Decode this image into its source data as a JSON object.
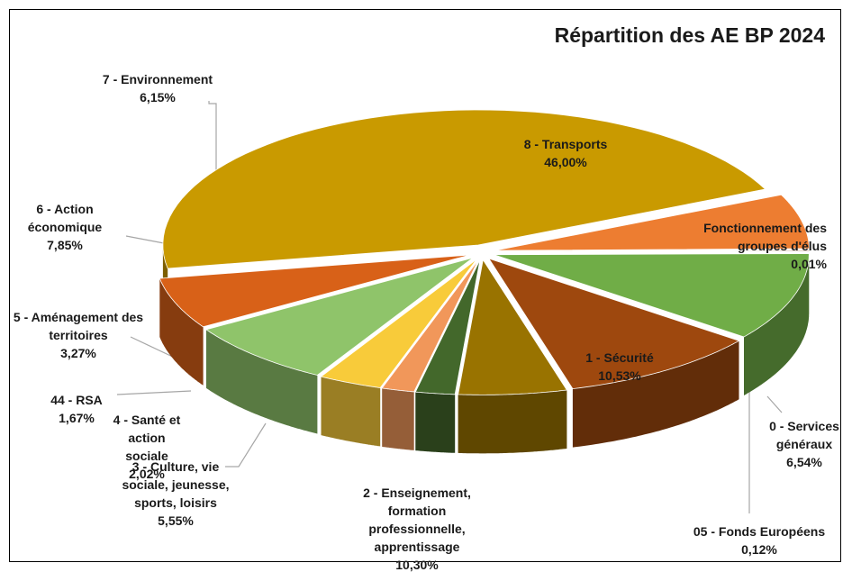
{
  "chart_data": {
    "type": "pie",
    "title": "Répartition des AE BP 2024",
    "categories": [
      "8 - Transports",
      "Fonctionnement des groupes d'élus",
      "0 - Services généraux",
      "05 - Fonds Européens",
      "1 - Sécurité",
      "2 - Enseignement, formation professionnelle, apprentissage",
      "3 - Culture, vie sociale, jeunesse, sports, loisirs",
      "4 - Santé et action sociale",
      "44 - RSA",
      "5 - Aménagement des territoires",
      "6 - Action économique",
      "7 - Environnement"
    ],
    "values": [
      46.0,
      0.01,
      6.54,
      0.12,
      10.53,
      10.3,
      5.55,
      2.02,
      1.67,
      3.27,
      7.85,
      6.15
    ],
    "value_labels": [
      "46,00%",
      "0,01%",
      "6,54%",
      "0,12%",
      "10,53%",
      "10,30%",
      "5,55%",
      "2,02%",
      "1,67%",
      "3,27%",
      "7,85%",
      "6,15%"
    ],
    "colors": [
      "#c99a00",
      "#7a5a00",
      "#ed7d31",
      "#8b4513",
      "#70ad47",
      "#9e480e",
      "#997300",
      "#43682b",
      "#f1975a",
      "#f8cb3a",
      "#8fc46a",
      "#d86118"
    ]
  }
}
